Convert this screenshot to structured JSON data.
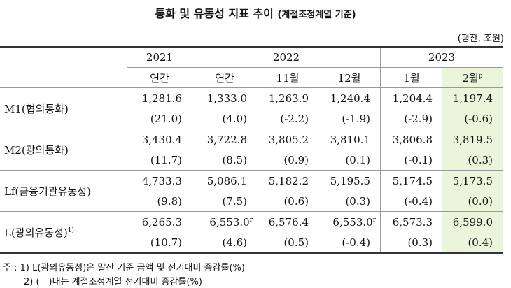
{
  "title": "통화 및 유동성 지표 추이",
  "title_sub": "(계절조정계열 기준)",
  "unit": "(평잔, 조원)",
  "header": {
    "years": [
      "2021",
      "2022",
      "2023"
    ],
    "periods": [
      "연간",
      "연간",
      "11월",
      "12월",
      "1월",
      "2월"
    ],
    "prelim_mark": "p"
  },
  "rows": [
    {
      "label": "M1(협의통화)",
      "label_sup": "",
      "values": [
        "1,281.6",
        "1,333.0",
        "1,263.9",
        "1,240.4",
        "1,204.4",
        "1,197.4"
      ],
      "revised": [
        "",
        "",
        "",
        "",
        "",
        ""
      ],
      "changes": [
        "(21.0)",
        "(4.0)",
        "(-2.2)",
        "(-1.9)",
        "(-2.9)",
        "(-0.6)"
      ]
    },
    {
      "label": "M2(광의통화)",
      "label_sup": "",
      "values": [
        "3,430.4",
        "3,722.8",
        "3,805.2",
        "3,810.1",
        "3,806.8",
        "3,819.5"
      ],
      "revised": [
        "",
        "",
        "",
        "",
        "",
        ""
      ],
      "changes": [
        "(11.7)",
        "(8.5)",
        "(0.9)",
        "(0.1)",
        "(-0.1)",
        "(0.3)"
      ]
    },
    {
      "label": "Lf(금융기관유동성)",
      "label_sup": "",
      "values": [
        "4,733.3",
        "5,086.1",
        "5,182.2",
        "5,195.5",
        "5,174.5",
        "5,173.5"
      ],
      "revised": [
        "",
        "",
        "",
        "",
        "",
        ""
      ],
      "changes": [
        "(9.8)",
        "(7.5)",
        "(0.6)",
        "(0.3)",
        "(-0.4)",
        "(0.0)"
      ]
    },
    {
      "label": "L(광의유동성)",
      "label_sup": "1)",
      "values": [
        "6,265.3",
        "6,553.0",
        "6,576.4",
        "6,553.0",
        "6,573.3",
        "6,599.0"
      ],
      "revised": [
        "",
        "r",
        "",
        "r",
        "",
        ""
      ],
      "changes": [
        "(10.7)",
        "(4.6)",
        "(0.5)",
        "(-0.4)",
        "(0.3)",
        "(0.4)"
      ]
    }
  ],
  "notes": [
    "주 : 1) L(광의유동성)은 말잔 기준 금액 및 전기대비 증감률(%)",
    "2) (　)내는 계절조정계열 전기대비 증감률(%)"
  ]
}
